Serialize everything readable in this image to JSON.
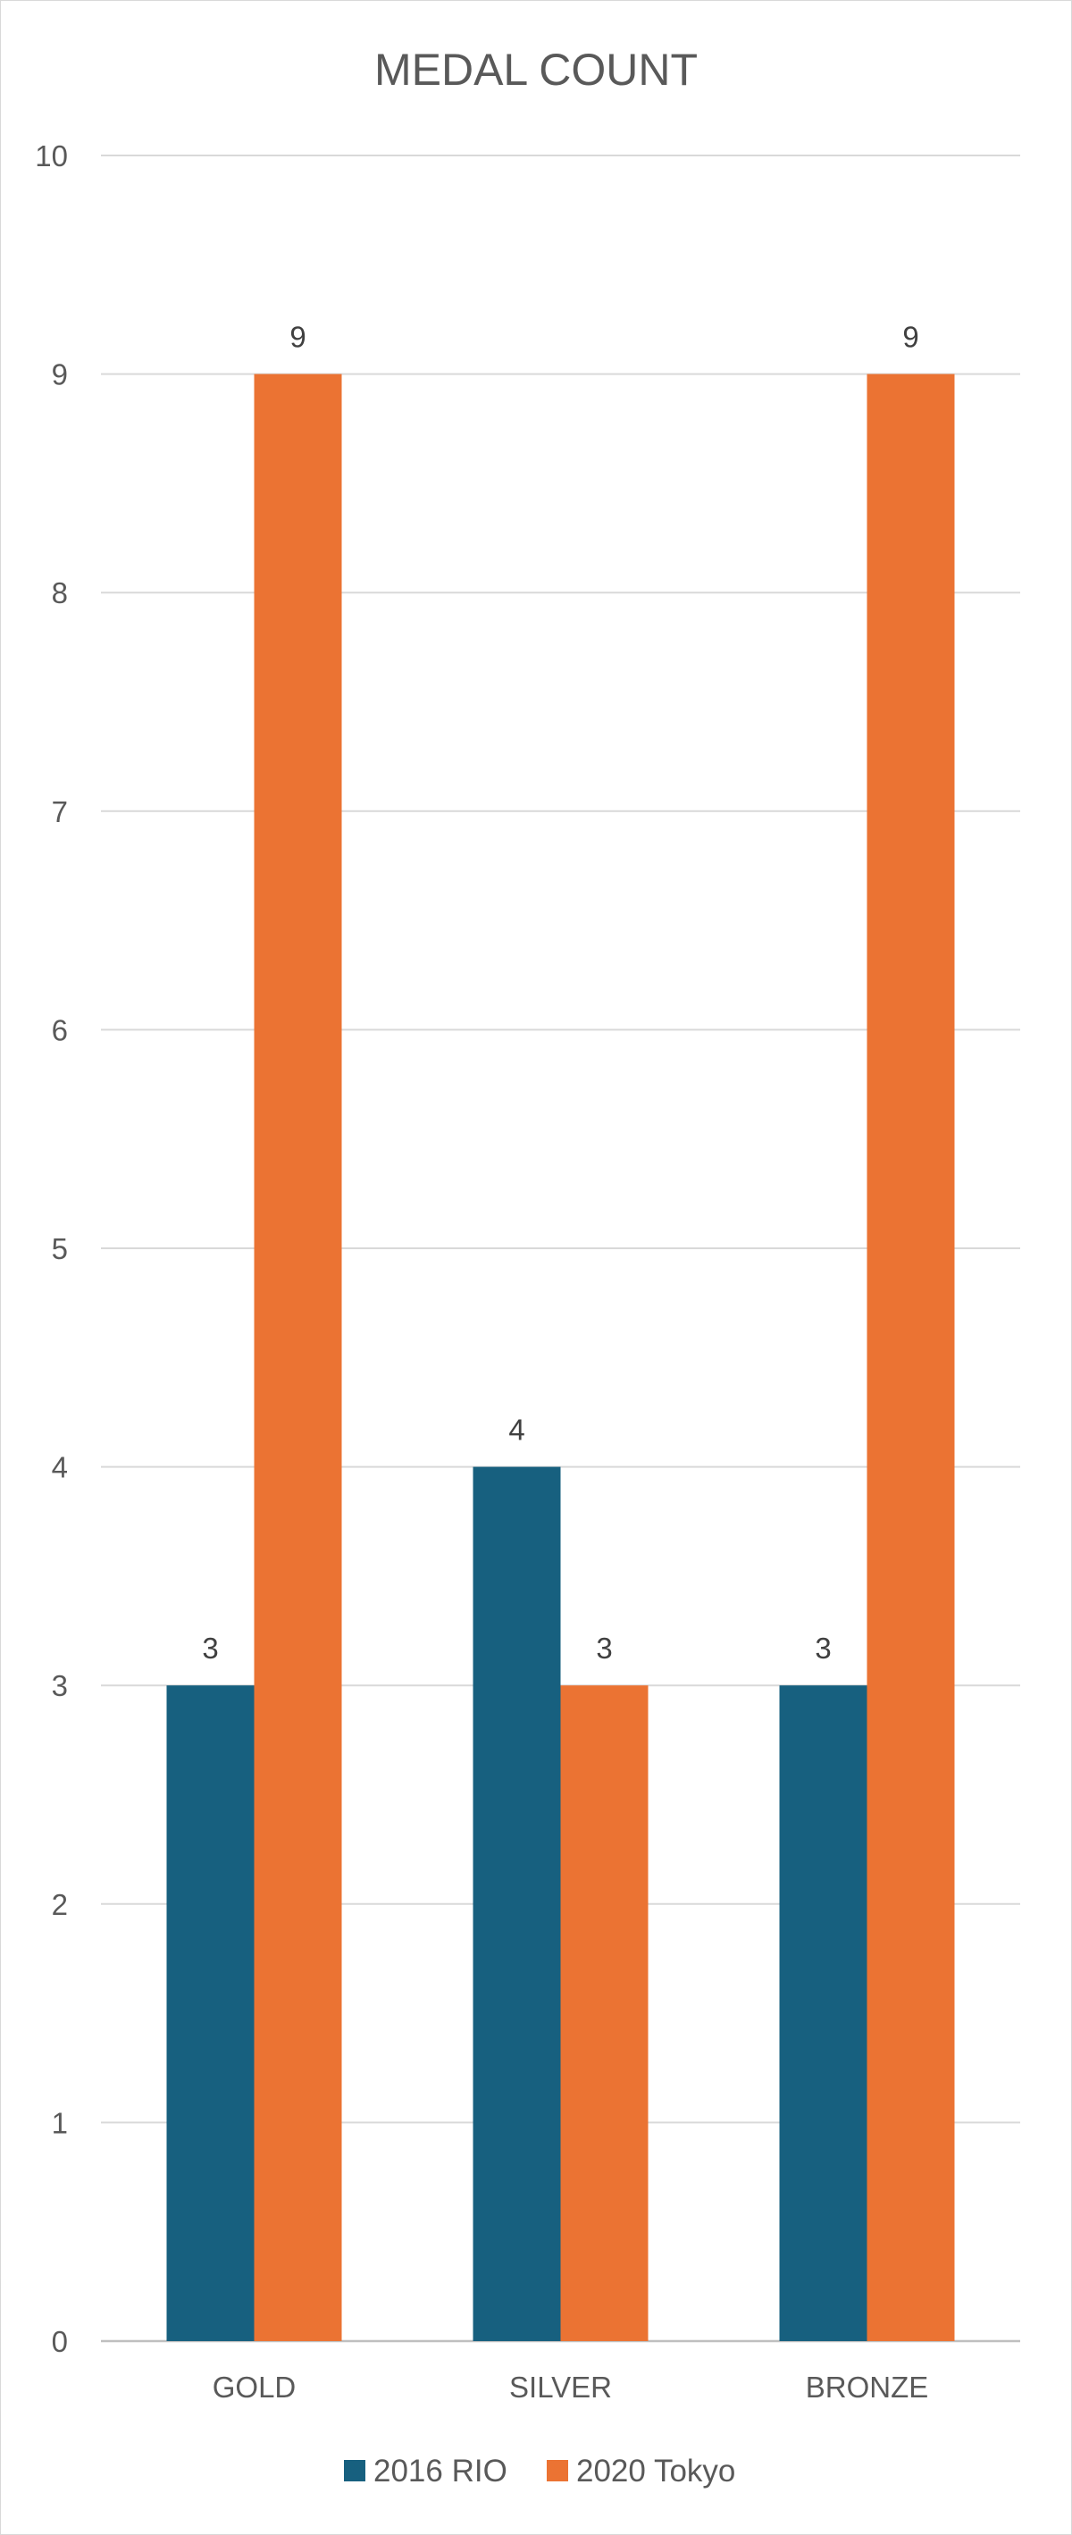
{
  "chart_data": {
    "type": "bar",
    "title": "MEDAL COUNT",
    "xlabel": "",
    "ylabel": "",
    "categories": [
      "GOLD",
      "SILVER",
      "BRONZE"
    ],
    "series": [
      {
        "name": "2016 RIO",
        "values": [
          3,
          4,
          3
        ],
        "color": "#17607f"
      },
      {
        "name": "2020 Tokyo",
        "values": [
          9,
          3,
          9
        ],
        "color": "#eb7333"
      }
    ],
    "ylim": [
      0,
      10
    ],
    "yticks": [
      "0",
      "1",
      "2",
      "3",
      "4",
      "5",
      "6",
      "7",
      "8",
      "9",
      "10"
    ],
    "grid": true,
    "legend": "bottom",
    "data_labels": true
  }
}
